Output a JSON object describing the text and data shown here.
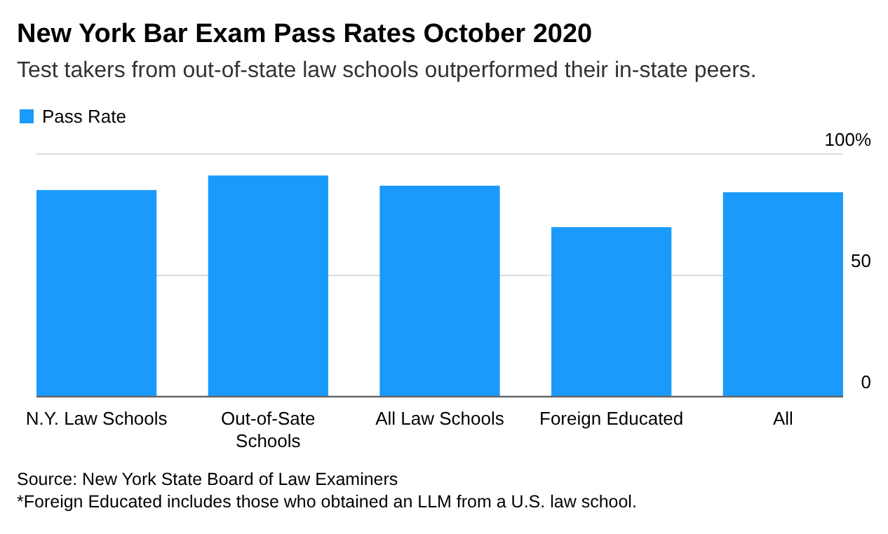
{
  "chart_data": {
    "type": "bar",
    "title": "New York Bar Exam Pass Rates October 2020",
    "subtitle": "Test takers from out-of-state law schools outperformed their in-state peers.",
    "categories": [
      "N.Y. Law Schools",
      "Out-of-Sate Schools",
      "All Law Schools",
      "Foreign Educated",
      "All"
    ],
    "series": [
      {
        "name": "Pass Rate",
        "color": "#1a9bfc",
        "values": [
          85.2,
          91.2,
          87.0,
          69.9,
          84.3
        ]
      }
    ],
    "ylim": [
      0,
      100
    ],
    "yticks": [
      0,
      50,
      {
        "value": 100,
        "label": "100%"
      }
    ],
    "grid": "y",
    "legend": "top left",
    "annotations": [
      "Source: New York State Board of Law Examiners",
      "*Foreign Educated includes those who obtained an LLM from a U.S. law school."
    ]
  }
}
